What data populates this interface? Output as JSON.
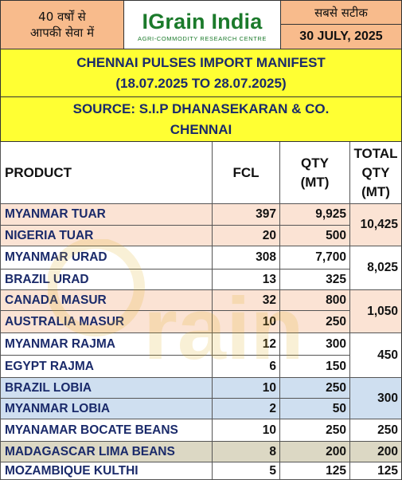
{
  "header": {
    "left_line1": "40 वर्षों से",
    "left_line2": "आपकी सेवा में",
    "logo_name": "IGrain India",
    "logo_tagline": "AGRI-COMMODITY RESEARCH CENTRE",
    "right_tag": "सबसे सटीक",
    "date": "30 JULY, 2025"
  },
  "title": {
    "line1": "CHENNAI PULSES IMPORT MANIFEST",
    "line2": "(18.07.2025 TO 28.07.2025)"
  },
  "source": {
    "line1": "SOURCE: S.I.P DHANASEKARAN & CO.",
    "line2": "CHENNAI"
  },
  "table": {
    "columns": {
      "product": "PRODUCT",
      "fcl": "FCL",
      "qty_line1": "QTY",
      "qty_line2": "(MT)",
      "total_line1": "TOTAL",
      "total_line2": "QTY",
      "total_line3": "(MT)"
    },
    "rows": [
      {
        "product": "MYANMAR TUAR",
        "fcl": "397",
        "qty": "9,925"
      },
      {
        "product": "NIGERIA TUAR",
        "fcl": "20",
        "qty": "500"
      },
      {
        "product": "MYANMAR URAD",
        "fcl": "308",
        "qty": "7,700"
      },
      {
        "product": "BRAZIL URAD",
        "fcl": "13",
        "qty": "325"
      },
      {
        "product": "CANADA MASUR",
        "fcl": "32",
        "qty": "800"
      },
      {
        "product": "AUSTRALIA MASUR",
        "fcl": "10",
        "qty": "250"
      },
      {
        "product": "MYANMAR RAJMA",
        "fcl": "12",
        "qty": "300"
      },
      {
        "product": "EGYPT RAJMA",
        "fcl": "6",
        "qty": "150"
      },
      {
        "product": "BRAZIL LOBIA",
        "fcl": "10",
        "qty": "250"
      },
      {
        "product": "MYANMAR LOBIA",
        "fcl": "2",
        "qty": "50"
      },
      {
        "product": "MYANAMAR BOCATE BEANS",
        "fcl": "10",
        "qty": "250"
      },
      {
        "product": "MADAGASCAR LIMA BEANS",
        "fcl": "8",
        "qty": "200"
      },
      {
        "product": "MOZAMBIQUE KULTHI",
        "fcl": "5",
        "qty": "125"
      }
    ],
    "totals": [
      "10,425",
      "8,025",
      "1,050",
      "450",
      "300",
      "250",
      "200",
      "125"
    ]
  },
  "colors": {
    "peach": "#fbe3d4",
    "blue": "#cfdff0",
    "tan": "#dcd8c4",
    "yellow": "#ffff33",
    "header_orange": "#f8bb8c",
    "brand_green": "#1b7a2b"
  }
}
